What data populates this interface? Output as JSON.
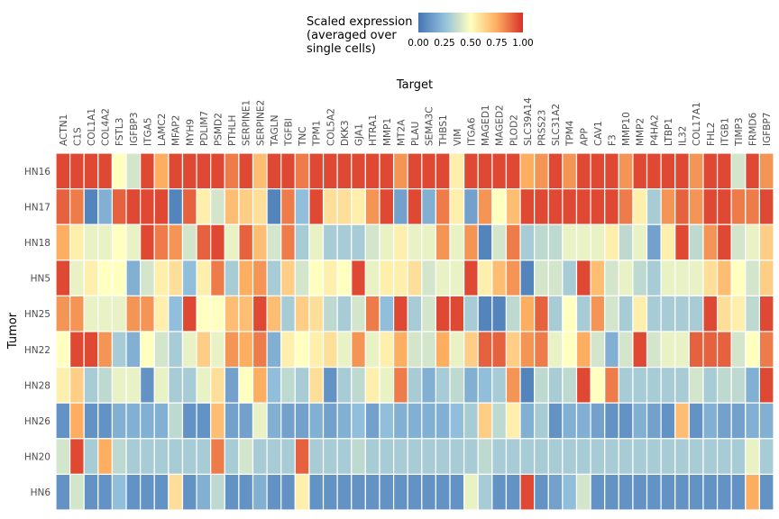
{
  "chart_data": {
    "type": "heatmap",
    "title": "",
    "xlabel": "Target",
    "ylabel": "Tumor",
    "legend": {
      "title_lines": [
        "Scaled expression",
        "(averaged over",
        "single cells)"
      ],
      "ticks": [
        "0.00",
        "0.25",
        "0.50",
        "0.75",
        "1.00"
      ],
      "colors": [
        "#4575b4",
        "#91bfdb",
        "#ffffbf",
        "#fdae61",
        "#d73027"
      ],
      "placement": "top"
    },
    "value_range": [
      0,
      1
    ],
    "columns": [
      "ACTN1",
      "C1S",
      "COL1A1",
      "COL4A2",
      "FSTL3",
      "IGFBP3",
      "ITGA5",
      "LAMC2",
      "MFAP2",
      "MYH9",
      "PDLIM7",
      "PSMD2",
      "PTHLH",
      "SERPINE1",
      "SERPINE2",
      "TAGLN",
      "TGFBI",
      "TNC",
      "TPM1",
      "COL5A2",
      "DKK3",
      "GJA1",
      "HTRA1",
      "MMP1",
      "MT2A",
      "PLAU",
      "SEMA3C",
      "THBS1",
      "VIM",
      "ITGA6",
      "MAGED1",
      "MAGED2",
      "PLOD2",
      "SLC39A14",
      "PRSS23",
      "SLC31A2",
      "TPM4",
      "APP",
      "CAV1",
      "F3",
      "MMP10",
      "MMP2",
      "P4HA2",
      "LTBP1",
      "IL32",
      "COL17A1",
      "FHL2",
      "ITGB1",
      "TIMP3",
      "FRMD6",
      "IGFBP7"
    ],
    "rows": [
      "HN16",
      "HN17",
      "HN18",
      "HN5",
      "HN25",
      "HN22",
      "HN28",
      "HN26",
      "HN20",
      "HN6"
    ],
    "values": [
      [
        0.95,
        0.95,
        0.95,
        0.95,
        0.5,
        0.4,
        0.95,
        0.75,
        0.95,
        0.95,
        0.95,
        0.95,
        0.85,
        0.95,
        0.7,
        0.95,
        0.95,
        0.85,
        0.95,
        0.95,
        0.95,
        0.95,
        0.95,
        0.95,
        0.8,
        0.95,
        0.95,
        0.95,
        0.55,
        0.95,
        0.95,
        0.95,
        0.95,
        0.75,
        0.8,
        0.95,
        0.8,
        0.95,
        0.95,
        0.95,
        0.8,
        0.95,
        0.95,
        0.95,
        0.95,
        0.8,
        0.95,
        0.95,
        0.4,
        0.95,
        0.8
      ],
      [
        0.9,
        0.85,
        0.05,
        0.2,
        0.9,
        0.95,
        0.95,
        0.95,
        0.05,
        0.9,
        0.55,
        0.4,
        0.7,
        0.65,
        0.6,
        0.05,
        0.85,
        0.25,
        0.95,
        0.6,
        0.6,
        0.55,
        0.8,
        0.95,
        0.15,
        0.95,
        0.2,
        0.85,
        0.55,
        0.15,
        0.8,
        0.5,
        0.7,
        0.95,
        0.95,
        0.95,
        0.95,
        0.95,
        0.95,
        0.95,
        0.85,
        0.55,
        0.3,
        0.8,
        0.9,
        0.8,
        0.95,
        0.95,
        0.85,
        0.85,
        0.95
      ],
      [
        0.75,
        0.55,
        0.45,
        0.45,
        0.5,
        0.45,
        0.95,
        0.85,
        0.8,
        0.4,
        0.9,
        0.95,
        0.45,
        0.9,
        0.7,
        0.4,
        0.85,
        0.3,
        0.45,
        0.3,
        0.3,
        0.3,
        0.4,
        0.45,
        0.55,
        0.45,
        0.45,
        0.8,
        0.45,
        0.8,
        0.05,
        0.4,
        0.85,
        0.3,
        0.35,
        0.35,
        0.45,
        0.45,
        0.45,
        0.55,
        0.35,
        0.45,
        0.15,
        0.55,
        0.95,
        0.35,
        0.8,
        0.95,
        0.4,
        0.45,
        0.65
      ],
      [
        0.95,
        0.45,
        0.55,
        0.5,
        0.5,
        0.2,
        0.4,
        0.55,
        0.6,
        0.25,
        0.55,
        0.85,
        0.3,
        0.75,
        0.8,
        0.3,
        0.65,
        0.4,
        0.5,
        0.55,
        0.5,
        0.95,
        0.45,
        0.55,
        0.55,
        0.6,
        0.4,
        0.45,
        0.45,
        0.95,
        0.55,
        0.7,
        0.8,
        0.05,
        0.4,
        0.4,
        0.3,
        0.95,
        0.7,
        0.4,
        0.45,
        0.35,
        0.3,
        0.45,
        0.45,
        0.45,
        0.6,
        0.7,
        0.5,
        0.4,
        0.65
      ],
      [
        0.8,
        0.8,
        0.45,
        0.45,
        0.45,
        0.8,
        0.8,
        0.55,
        0.25,
        0.95,
        0.5,
        0.5,
        0.7,
        0.7,
        0.95,
        0.7,
        0.3,
        0.65,
        0.6,
        0.35,
        0.3,
        0.4,
        0.85,
        0.25,
        0.95,
        0.3,
        0.4,
        0.95,
        0.95,
        0.3,
        0.05,
        0.05,
        0.35,
        0.75,
        0.9,
        0.3,
        0.5,
        0.3,
        0.8,
        0.4,
        0.3,
        0.55,
        0.3,
        0.3,
        0.3,
        0.3,
        0.95,
        0.6,
        0.55,
        0.35,
        0.95
      ],
      [
        0.5,
        0.95,
        0.95,
        0.8,
        0.3,
        0.2,
        0.5,
        0.4,
        0.3,
        0.45,
        0.65,
        0.45,
        0.8,
        0.75,
        0.85,
        0.2,
        0.55,
        0.5,
        0.55,
        0.6,
        0.45,
        0.8,
        0.45,
        0.55,
        0.75,
        0.4,
        0.4,
        0.75,
        0.45,
        0.65,
        0.9,
        0.9,
        0.65,
        0.8,
        0.85,
        0.45,
        0.5,
        0.75,
        0.4,
        0.2,
        0.4,
        0.95,
        0.4,
        0.45,
        0.45,
        0.9,
        0.9,
        0.9,
        0.4,
        0.5,
        0.85
      ],
      [
        0.55,
        0.65,
        0.3,
        0.35,
        0.45,
        0.45,
        0.1,
        0.45,
        0.3,
        0.3,
        0.45,
        0.6,
        0.15,
        0.5,
        0.75,
        0.25,
        0.35,
        0.3,
        0.6,
        0.1,
        0.3,
        0.35,
        0.55,
        0.45,
        0.85,
        0.3,
        0.2,
        0.3,
        0.35,
        0.2,
        0.25,
        0.3,
        0.8,
        0.05,
        0.35,
        0.3,
        0.35,
        0.95,
        0.5,
        0.85,
        0.3,
        0.3,
        0.3,
        0.3,
        0.3,
        0.4,
        0.3,
        0.35,
        0.35,
        0.2,
        0.95
      ],
      [
        0.1,
        0.75,
        0.1,
        0.1,
        0.2,
        0.2,
        0.2,
        0.2,
        0.35,
        0.1,
        0.1,
        0.7,
        0.15,
        0.15,
        0.45,
        0.2,
        0.15,
        0.15,
        0.2,
        0.15,
        0.2,
        0.25,
        0.15,
        0.25,
        0.2,
        0.2,
        0.2,
        0.2,
        0.25,
        0.3,
        0.65,
        0.35,
        0.55,
        0.2,
        0.3,
        0.1,
        0.2,
        0.2,
        0.15,
        0.1,
        0.1,
        0.2,
        0.15,
        0.1,
        0.7,
        0.1,
        0.2,
        0.15,
        0.15,
        0.2,
        0.2
      ],
      [
        0.4,
        0.95,
        0.3,
        0.75,
        0.35,
        0.3,
        0.3,
        0.3,
        0.3,
        0.3,
        0.3,
        0.85,
        0.3,
        0.4,
        0.3,
        0.3,
        0.3,
        0.9,
        0.3,
        0.3,
        0.3,
        0.35,
        0.3,
        0.3,
        0.3,
        0.3,
        0.3,
        0.3,
        0.3,
        0.3,
        0.35,
        0.3,
        0.3,
        0.3,
        0.3,
        0.3,
        0.3,
        0.3,
        0.3,
        0.3,
        0.3,
        0.3,
        0.3,
        0.3,
        0.3,
        0.3,
        0.3,
        0.3,
        0.3,
        0.45,
        0.3
      ],
      [
        0.1,
        0.4,
        0.1,
        0.1,
        0.25,
        0.1,
        0.1,
        0.1,
        0.6,
        0.1,
        0.2,
        0.35,
        0.1,
        0.1,
        0.2,
        0.1,
        0.1,
        0.55,
        0.1,
        0.1,
        0.1,
        0.1,
        0.1,
        0.1,
        0.1,
        0.1,
        0.1,
        0.1,
        0.1,
        0.45,
        0.3,
        0.1,
        0.1,
        0.95,
        0.1,
        0.15,
        0.25,
        0.4,
        0.1,
        0.1,
        0.1,
        0.1,
        0.1,
        0.1,
        0.1,
        0.1,
        0.1,
        0.1,
        0.1,
        0.75,
        0.1
      ]
    ]
  }
}
